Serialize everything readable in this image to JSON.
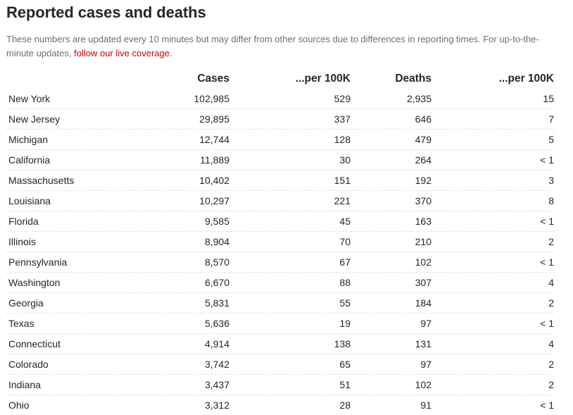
{
  "page": {
    "title": "Reported cases and deaths",
    "intro_text": "These numbers are updated every 10 minutes but may differ from other sources due to differences in reporting times. For up-to-the-minute updates, ",
    "intro_link": "follow our live coverage",
    "intro_end": ".",
    "link_color": "#cc0000"
  },
  "table": {
    "headers": [
      "",
      "Cases",
      "...per 100K",
      "Deaths",
      "...per 100K"
    ],
    "rows": [
      {
        "state": "New York",
        "cases": "102,985",
        "cases_per_100k": "529",
        "deaths": "2,935",
        "deaths_per_100k": "15"
      },
      {
        "state": "New Jersey",
        "cases": "29,895",
        "cases_per_100k": "337",
        "deaths": "646",
        "deaths_per_100k": "7"
      },
      {
        "state": "Michigan",
        "cases": "12,744",
        "cases_per_100k": "128",
        "deaths": "479",
        "deaths_per_100k": "5"
      },
      {
        "state": "California",
        "cases": "11,889",
        "cases_per_100k": "30",
        "deaths": "264",
        "deaths_per_100k": "< 1"
      },
      {
        "state": "Massachusetts",
        "cases": "10,402",
        "cases_per_100k": "151",
        "deaths": "192",
        "deaths_per_100k": "3"
      },
      {
        "state": "Louisiana",
        "cases": "10,297",
        "cases_per_100k": "221",
        "deaths": "370",
        "deaths_per_100k": "8"
      },
      {
        "state": "Florida",
        "cases": "9,585",
        "cases_per_100k": "45",
        "deaths": "163",
        "deaths_per_100k": "< 1"
      },
      {
        "state": "Illinois",
        "cases": "8,904",
        "cases_per_100k": "70",
        "deaths": "210",
        "deaths_per_100k": "2"
      },
      {
        "state": "Pennsylvania",
        "cases": "8,570",
        "cases_per_100k": "67",
        "deaths": "102",
        "deaths_per_100k": "< 1"
      },
      {
        "state": "Washington",
        "cases": "6,670",
        "cases_per_100k": "88",
        "deaths": "307",
        "deaths_per_100k": "4"
      },
      {
        "state": "Georgia",
        "cases": "5,831",
        "cases_per_100k": "55",
        "deaths": "184",
        "deaths_per_100k": "2"
      },
      {
        "state": "Texas",
        "cases": "5,636",
        "cases_per_100k": "19",
        "deaths": "97",
        "deaths_per_100k": "< 1"
      },
      {
        "state": "Connecticut",
        "cases": "4,914",
        "cases_per_100k": "138",
        "deaths": "131",
        "deaths_per_100k": "4"
      },
      {
        "state": "Colorado",
        "cases": "3,742",
        "cases_per_100k": "65",
        "deaths": "97",
        "deaths_per_100k": "2"
      },
      {
        "state": "Indiana",
        "cases": "3,437",
        "cases_per_100k": "51",
        "deaths": "102",
        "deaths_per_100k": "2"
      },
      {
        "state": "Ohio",
        "cases": "3,312",
        "cases_per_100k": "28",
        "deaths": "91",
        "deaths_per_100k": "< 1"
      }
    ]
  }
}
